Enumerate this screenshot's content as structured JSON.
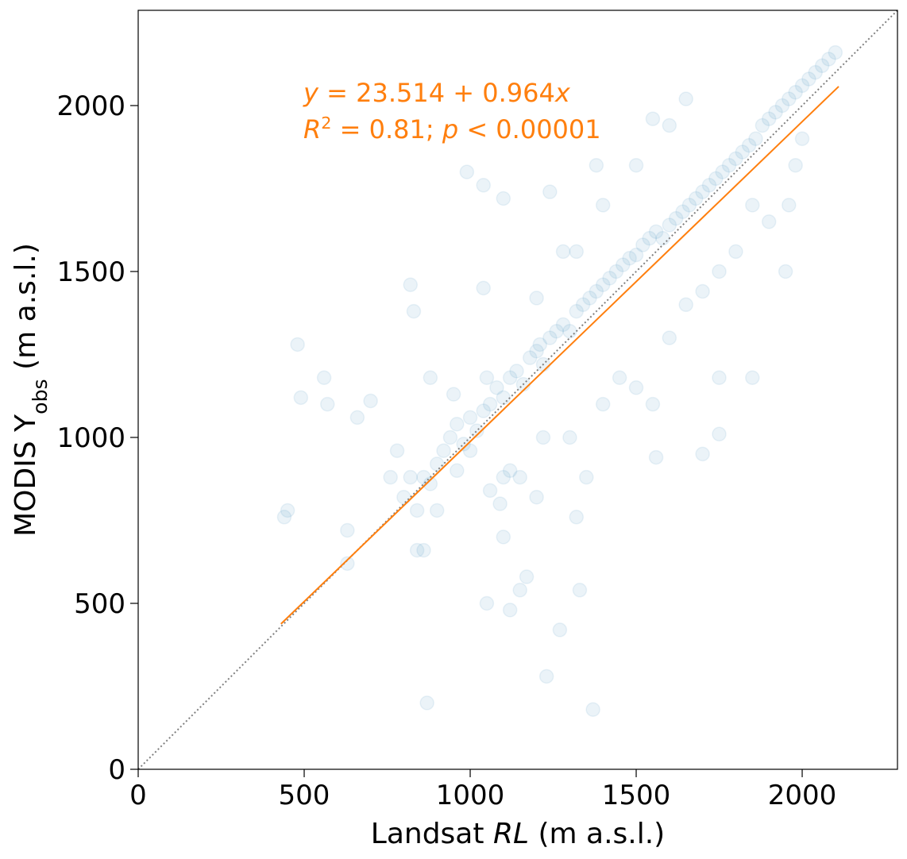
{
  "chart_data": {
    "type": "scatter",
    "xlim": [
      0,
      2287
    ],
    "ylim": [
      0,
      2287
    ],
    "xticks": [
      0,
      500,
      1000,
      1500,
      2000
    ],
    "yticks": [
      0,
      500,
      1000,
      1500,
      2000
    ],
    "xlabel": [
      {
        "text": "Landsat "
      },
      {
        "text": "RL",
        "italic": true
      },
      {
        "text": " (m a.s.l.)"
      }
    ],
    "ylabel": [
      {
        "text": "MODIS Y"
      },
      {
        "text": "obs",
        "sub": true
      },
      {
        "text": " (m a.s.l.)"
      }
    ],
    "annotations": [
      [
        {
          "text": "y",
          "italic": true
        },
        {
          "text": " = 23.514 + 0.964"
        },
        {
          "text": "x",
          "italic": true
        }
      ],
      [
        {
          "text": "R",
          "italic": true
        },
        {
          "text": "2",
          "sup": true
        },
        {
          "text": " = 0.81; "
        },
        {
          "text": "p",
          "italic": true
        },
        {
          "text": " < 0.00001"
        }
      ]
    ],
    "annotation_color": "#ff7f0e",
    "series": [
      {
        "color": "#1f77b4",
        "alpha": 0.09,
        "x": [
          800,
          820,
          840,
          860,
          880,
          900,
          920,
          940,
          960,
          980,
          1000,
          1020,
          1040,
          1060,
          1080,
          1100,
          1120,
          1140,
          1160,
          1180,
          1200,
          1210,
          1220,
          1240,
          1260,
          1280,
          1300,
          1320,
          1340,
          1360,
          1380,
          1400,
          1420,
          1440,
          1460,
          1480,
          1500,
          1520,
          1540,
          1560,
          1580,
          1600,
          1620,
          1640,
          1660,
          1680,
          1700,
          1720,
          1740,
          1760,
          1780,
          1800,
          1820,
          1840,
          1860,
          1880,
          1900,
          1920,
          1940,
          1960,
          1980,
          2000,
          2020,
          2040,
          2060,
          2080,
          2100,
          880,
          950,
          1000,
          1050,
          1100,
          1120,
          1150,
          1060,
          1090,
          1200,
          1220,
          1300,
          1350,
          1400,
          1450,
          1500,
          1550,
          1600,
          1650,
          1700,
          1750,
          1800,
          1850,
          1900,
          1950,
          1960,
          1980,
          2000,
          1200,
          1280,
          1400,
          1500,
          1550,
          1600,
          1650,
          1750,
          1850,
          1700,
          1560,
          1320,
          1170,
          1100,
          960,
          900,
          860,
          840,
          760,
          780,
          700,
          660,
          630,
          630,
          480,
          490,
          560,
          570,
          440,
          450,
          870,
          1370,
          1270,
          1050,
          1230,
          1150,
          1330,
          1120,
          990,
          1040,
          1100,
          1240,
          1040,
          820,
          830,
          1750,
          1380,
          1320
        ],
        "values": [
          820,
          880,
          780,
          880,
          860,
          920,
          960,
          1000,
          1040,
          980,
          1060,
          1020,
          1080,
          1100,
          1150,
          1120,
          1180,
          1200,
          1160,
          1240,
          1260,
          1280,
          1220,
          1300,
          1320,
          1340,
          1320,
          1380,
          1400,
          1420,
          1440,
          1460,
          1480,
          1500,
          1520,
          1540,
          1550,
          1580,
          1600,
          1620,
          1600,
          1640,
          1660,
          1680,
          1700,
          1720,
          1740,
          1760,
          1780,
          1800,
          1820,
          1840,
          1860,
          1880,
          1900,
          1940,
          1960,
          1980,
          2000,
          2020,
          2040,
          2060,
          2080,
          2100,
          2120,
          2140,
          2160,
          1180,
          1130,
          960,
          1180,
          880,
          900,
          880,
          840,
          800,
          820,
          1000,
          1000,
          880,
          1100,
          1180,
          1150,
          1100,
          1300,
          1400,
          1440,
          1500,
          1560,
          1700,
          1650,
          1500,
          1700,
          1820,
          1900,
          1420,
          1560,
          1700,
          1820,
          1960,
          1940,
          2020,
          1180,
          1180,
          950,
          940,
          760,
          580,
          700,
          900,
          780,
          660,
          660,
          880,
          960,
          1110,
          1060,
          720,
          620,
          1280,
          1120,
          1180,
          1100,
          760,
          780,
          200,
          180,
          420,
          500,
          280,
          540,
          540,
          480,
          1800,
          1760,
          1720,
          1740,
          1450,
          1460,
          1380,
          1010,
          1820,
          1560
        ]
      }
    ],
    "fit_line": {
      "color": "#ff7f0e",
      "x": [
        430,
        2110
      ],
      "values": [
        438.03,
        2057.56
      ]
    },
    "identity_line": {
      "color": "#808080",
      "x": [
        0,
        2287
      ],
      "values": [
        0,
        2287
      ]
    }
  }
}
